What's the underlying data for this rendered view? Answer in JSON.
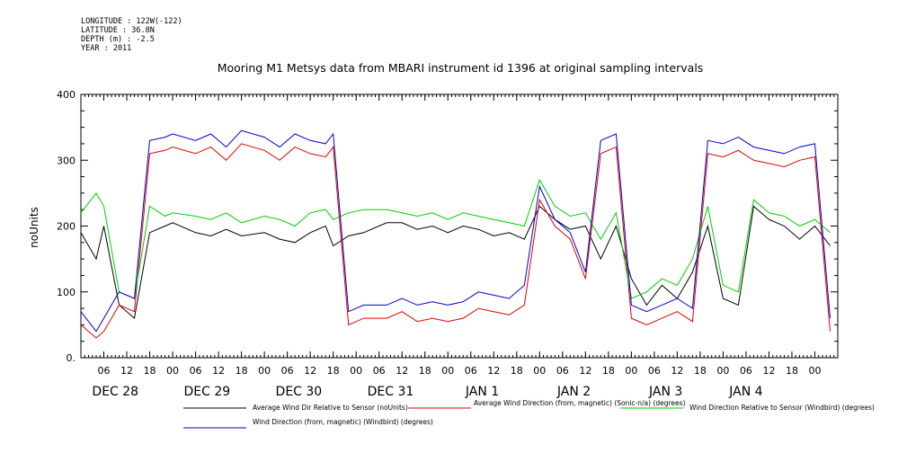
{
  "header": {
    "longitude": "LONGITUDE : 122W(-122)",
    "latitude": "LATITUDE : 36.8N",
    "depth": "DEPTH (m) : -2.5",
    "year": "YEAR : 2011"
  },
  "chart_data": {
    "type": "line",
    "title": "Mooring M1 Metsys data from MBARI instrument id 1396 at original sampling intervals",
    "ylabel": "noUnits",
    "xlabel": "",
    "ylim": [
      0,
      400
    ],
    "yticks": [
      0,
      100,
      200,
      300,
      400
    ],
    "ytick_labels": [
      "0.",
      "100",
      "200",
      "300",
      "400"
    ],
    "xlim": [
      0,
      198
    ],
    "hour_ticks": [
      {
        "x": 6,
        "label": "06"
      },
      {
        "x": 12,
        "label": "12"
      },
      {
        "x": 18,
        "label": "18"
      },
      {
        "x": 24,
        "label": "00"
      },
      {
        "x": 30,
        "label": "06"
      },
      {
        "x": 36,
        "label": "12"
      },
      {
        "x": 42,
        "label": "18"
      },
      {
        "x": 48,
        "label": "00"
      },
      {
        "x": 54,
        "label": "06"
      },
      {
        "x": 60,
        "label": "12"
      },
      {
        "x": 66,
        "label": "18"
      },
      {
        "x": 72,
        "label": "00"
      },
      {
        "x": 78,
        "label": "06"
      },
      {
        "x": 84,
        "label": "12"
      },
      {
        "x": 90,
        "label": "18"
      },
      {
        "x": 96,
        "label": "00"
      },
      {
        "x": 102,
        "label": "06"
      },
      {
        "x": 108,
        "label": "12"
      },
      {
        "x": 114,
        "label": "18"
      },
      {
        "x": 120,
        "label": "00"
      },
      {
        "x": 126,
        "label": "06"
      },
      {
        "x": 132,
        "label": "12"
      },
      {
        "x": 138,
        "label": "18"
      },
      {
        "x": 144,
        "label": "00"
      },
      {
        "x": 150,
        "label": "06"
      },
      {
        "x": 156,
        "label": "12"
      },
      {
        "x": 162,
        "label": "18"
      },
      {
        "x": 168,
        "label": "00"
      },
      {
        "x": 174,
        "label": "06"
      },
      {
        "x": 180,
        "label": "12"
      },
      {
        "x": 186,
        "label": "18"
      },
      {
        "x": 192,
        "label": "00"
      }
    ],
    "day_labels": [
      {
        "x": 9,
        "label": "DEC 28"
      },
      {
        "x": 33,
        "label": "DEC 29"
      },
      {
        "x": 57,
        "label": "DEC 30"
      },
      {
        "x": 81,
        "label": "DEC 31"
      },
      {
        "x": 105,
        "label": "JAN  1"
      },
      {
        "x": 129,
        "label": "JAN  2"
      },
      {
        "x": 153,
        "label": "JAN  3"
      },
      {
        "x": 174,
        "label": "JAN  4"
      }
    ],
    "series": [
      {
        "name": "Average Wind Dir Relative to Sensor (noUnits)",
        "color": "#000000",
        "x": [
          0,
          4,
          6,
          10,
          14,
          18,
          22,
          24,
          30,
          34,
          38,
          42,
          48,
          52,
          56,
          60,
          64,
          66,
          70,
          74,
          80,
          84,
          88,
          92,
          96,
          100,
          104,
          108,
          112,
          116,
          120,
          124,
          128,
          132,
          136,
          140,
          144,
          148,
          152,
          156,
          160,
          164,
          168,
          172,
          176,
          180,
          184,
          188,
          192,
          196
        ],
        "y": [
          190,
          150,
          200,
          80,
          60,
          190,
          200,
          205,
          190,
          185,
          195,
          185,
          190,
          180,
          175,
          190,
          200,
          170,
          185,
          190,
          205,
          205,
          195,
          200,
          190,
          200,
          195,
          185,
          190,
          180,
          230,
          210,
          195,
          200,
          150,
          200,
          120,
          80,
          110,
          90,
          130,
          200,
          90,
          80,
          230,
          210,
          200,
          180,
          200,
          170
        ]
      },
      {
        "name": "Average Wind Direction (from, magnetic) (Sonic-n/a) (degrees)",
        "color": "#e00000",
        "x": [
          0,
          4,
          6,
          10,
          14,
          18,
          22,
          24,
          30,
          34,
          38,
          42,
          48,
          52,
          56,
          60,
          64,
          66,
          70,
          74,
          80,
          84,
          88,
          92,
          96,
          100,
          104,
          108,
          112,
          116,
          120,
          124,
          128,
          132,
          136,
          140,
          144,
          148,
          152,
          156,
          160,
          164,
          168,
          172,
          176,
          180,
          184,
          188,
          192,
          196
        ],
        "y": [
          50,
          30,
          40,
          80,
          70,
          310,
          315,
          320,
          310,
          320,
          300,
          325,
          315,
          300,
          320,
          310,
          305,
          320,
          50,
          60,
          60,
          70,
          55,
          60,
          55,
          60,
          75,
          70,
          65,
          80,
          240,
          200,
          180,
          120,
          310,
          320,
          60,
          50,
          60,
          70,
          55,
          310,
          305,
          315,
          300,
          295,
          290,
          300,
          305,
          40
        ]
      },
      {
        "name": "Wind Direction Relative to Sensor (Windbird) (degrees)",
        "color": "#00d000",
        "x": [
          0,
          4,
          6,
          10,
          14,
          18,
          22,
          24,
          30,
          34,
          38,
          42,
          48,
          52,
          56,
          60,
          64,
          66,
          70,
          74,
          80,
          84,
          88,
          92,
          96,
          100,
          104,
          108,
          112,
          116,
          120,
          124,
          128,
          132,
          136,
          140,
          144,
          148,
          152,
          156,
          160,
          164,
          168,
          172,
          176,
          180,
          184,
          188,
          192,
          196
        ],
        "y": [
          220,
          250,
          230,
          100,
          90,
          230,
          215,
          220,
          215,
          210,
          220,
          205,
          215,
          210,
          200,
          220,
          225,
          210,
          220,
          225,
          225,
          220,
          215,
          220,
          210,
          220,
          215,
          210,
          205,
          200,
          270,
          230,
          215,
          220,
          180,
          220,
          90,
          100,
          120,
          110,
          150,
          230,
          110,
          100,
          240,
          220,
          215,
          200,
          210,
          190
        ]
      },
      {
        "name": "Wind Direction (from, magnetic) (Windbird) (degrees)",
        "color": "#0000d0",
        "x": [
          0,
          4,
          6,
          10,
          14,
          18,
          22,
          24,
          30,
          34,
          38,
          42,
          48,
          52,
          56,
          60,
          64,
          66,
          70,
          74,
          80,
          84,
          88,
          92,
          96,
          100,
          104,
          108,
          112,
          116,
          120,
          124,
          128,
          132,
          136,
          140,
          144,
          148,
          152,
          156,
          160,
          164,
          168,
          172,
          176,
          180,
          184,
          188,
          192,
          196
        ],
        "y": [
          70,
          40,
          60,
          100,
          90,
          330,
          335,
          340,
          330,
          340,
          320,
          345,
          335,
          320,
          340,
          330,
          325,
          340,
          70,
          80,
          80,
          90,
          80,
          85,
          80,
          85,
          100,
          95,
          90,
          110,
          260,
          210,
          190,
          130,
          330,
          340,
          80,
          70,
          80,
          90,
          75,
          330,
          325,
          335,
          320,
          315,
          310,
          320,
          325,
          60
        ]
      }
    ]
  }
}
